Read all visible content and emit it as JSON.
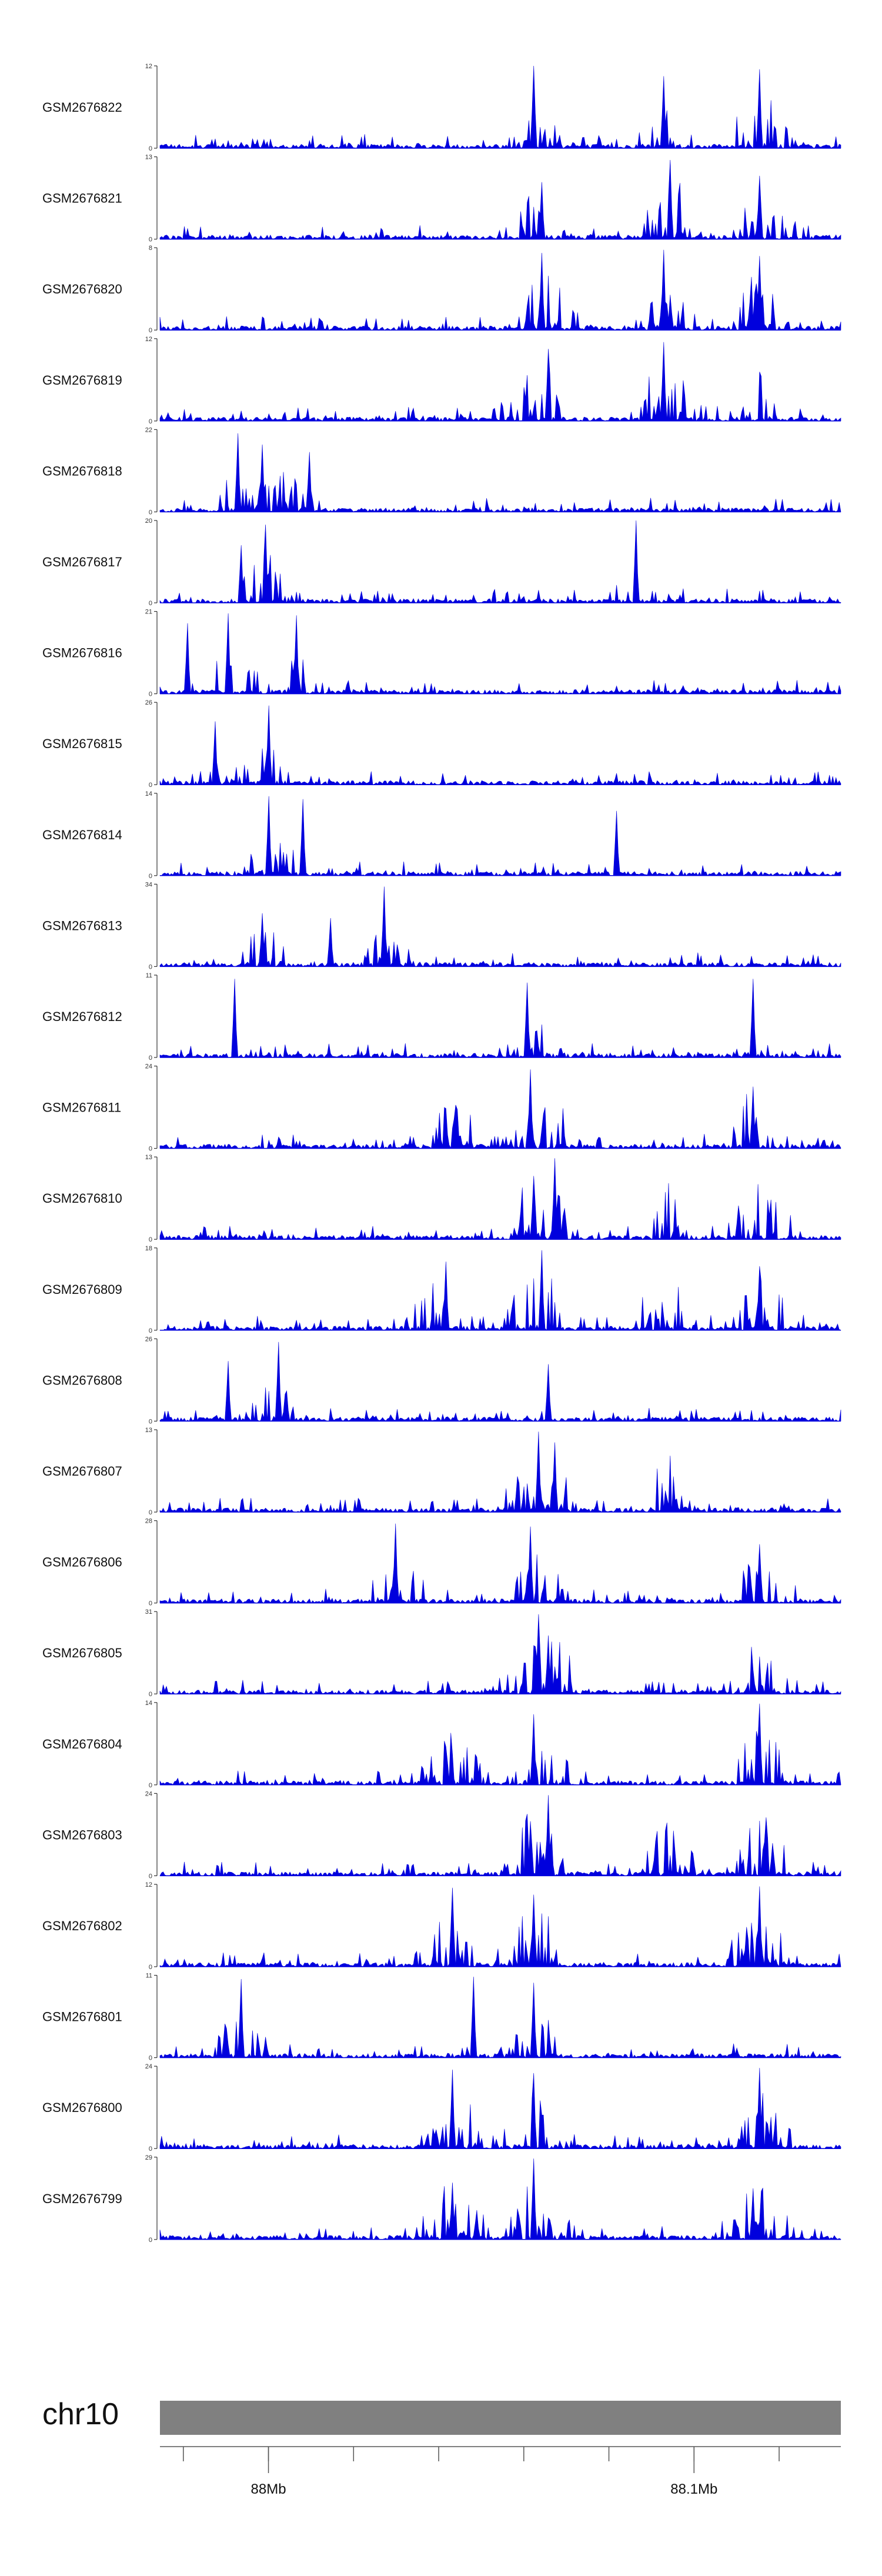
{
  "chart_data": {
    "type": "area",
    "title": "",
    "chromosome": "chr10",
    "x_ticks": [
      {
        "value": 88.0,
        "label": "88Mb"
      },
      {
        "value": 88.1,
        "label": "88.1Mb"
      }
    ],
    "xlim": [
      87.9745,
      88.1345
    ],
    "colors": {
      "signal": "#0000dd",
      "ideogram": "#808080",
      "axis": "#444444"
    },
    "tracks": [
      {
        "name": "GSM2676822",
        "ymax": 12,
        "seed": 822,
        "hotspots": [
          [
            0.55,
            4.0
          ],
          [
            0.74,
            2.5
          ],
          [
            0.88,
            3.5
          ]
        ],
        "peaks": [
          [
            0.55,
            12
          ],
          [
            0.74,
            10.5
          ],
          [
            0.88,
            11.5
          ]
        ]
      },
      {
        "name": "GSM2676821",
        "ymax": 13,
        "seed": 821,
        "hotspots": [
          [
            0.56,
            3.0
          ],
          [
            0.75,
            4.0
          ],
          [
            0.88,
            3.0
          ]
        ],
        "peaks": [
          [
            0.75,
            12.5
          ],
          [
            0.88,
            10
          ],
          [
            0.56,
            9
          ]
        ]
      },
      {
        "name": "GSM2676820",
        "ymax": 8,
        "seed": 820,
        "hotspots": [
          [
            0.57,
            4.5
          ],
          [
            0.74,
            3.0
          ],
          [
            0.88,
            3.5
          ]
        ],
        "peaks": [
          [
            0.56,
            7.5
          ],
          [
            0.74,
            7.8
          ],
          [
            0.88,
            7.2
          ]
        ]
      },
      {
        "name": "GSM2676819",
        "ymax": 12,
        "seed": 819,
        "hotspots": [
          [
            0.55,
            3.5
          ],
          [
            0.74,
            4.0
          ],
          [
            0.88,
            2.5
          ]
        ],
        "peaks": [
          [
            0.74,
            11.5
          ],
          [
            0.57,
            10.5
          ]
        ]
      },
      {
        "name": "GSM2676818",
        "ymax": 22,
        "seed": 818,
        "hotspots": [
          [
            0.18,
            2.5
          ],
          [
            0.12,
            2.0
          ]
        ],
        "peaks": [
          [
            0.115,
            21
          ],
          [
            0.15,
            18
          ],
          [
            0.22,
            16
          ]
        ]
      },
      {
        "name": "GSM2676817",
        "ymax": 20,
        "seed": 817,
        "hotspots": [
          [
            0.16,
            2.5
          ],
          [
            0.7,
            1.0
          ]
        ],
        "peaks": [
          [
            0.7,
            20
          ],
          [
            0.155,
            19
          ],
          [
            0.12,
            14
          ]
        ]
      },
      {
        "name": "GSM2676816",
        "ymax": 21,
        "seed": 816,
        "hotspots": [
          [
            0.1,
            2.0
          ],
          [
            0.2,
            2.0
          ]
        ],
        "peaks": [
          [
            0.1,
            20.5
          ],
          [
            0.2,
            20
          ],
          [
            0.04,
            18
          ]
        ]
      },
      {
        "name": "GSM2676815",
        "ymax": 26,
        "seed": 815,
        "hotspots": [
          [
            0.16,
            2.0
          ]
        ],
        "peaks": [
          [
            0.16,
            25
          ],
          [
            0.08,
            20
          ]
        ]
      },
      {
        "name": "GSM2676814",
        "ymax": 14,
        "seed": 814,
        "hotspots": [
          [
            0.17,
            2.0
          ]
        ],
        "peaks": [
          [
            0.16,
            13.5
          ],
          [
            0.21,
            13
          ],
          [
            0.67,
            11
          ]
        ]
      },
      {
        "name": "GSM2676813",
        "ymax": 34,
        "seed": 813,
        "hotspots": [
          [
            0.15,
            2.0
          ],
          [
            0.33,
            2.0
          ]
        ],
        "peaks": [
          [
            0.33,
            33
          ],
          [
            0.15,
            22
          ],
          [
            0.25,
            20
          ]
        ]
      },
      {
        "name": "GSM2676812",
        "ymax": 11,
        "seed": 812,
        "hotspots": [
          [
            0.55,
            2.0
          ]
        ],
        "peaks": [
          [
            0.11,
            10.5
          ],
          [
            0.87,
            10.5
          ],
          [
            0.54,
            10
          ]
        ]
      },
      {
        "name": "GSM2676811",
        "ymax": 24,
        "seed": 811,
        "hotspots": [
          [
            0.56,
            6.0
          ],
          [
            0.43,
            3.0
          ],
          [
            0.88,
            4.0
          ]
        ],
        "peaks": [
          [
            0.545,
            23
          ],
          [
            0.87,
            18
          ]
        ]
      },
      {
        "name": "GSM2676810",
        "ymax": 13,
        "seed": 810,
        "hotspots": [
          [
            0.56,
            6.0
          ],
          [
            0.75,
            3.0
          ],
          [
            0.88,
            4.0
          ]
        ],
        "peaks": [
          [
            0.58,
            12.8
          ],
          [
            0.55,
            10
          ]
        ]
      },
      {
        "name": "GSM2676809",
        "ymax": 18,
        "seed": 809,
        "hotspots": [
          [
            0.55,
            5.0
          ],
          [
            0.41,
            3.0
          ],
          [
            0.74,
            3.0
          ],
          [
            0.88,
            4.0
          ]
        ],
        "peaks": [
          [
            0.56,
            17.5
          ],
          [
            0.42,
            15
          ],
          [
            0.88,
            14
          ]
        ]
      },
      {
        "name": "GSM2676808",
        "ymax": 26,
        "seed": 808,
        "hotspots": [
          [
            0.17,
            2.0
          ]
        ],
        "peaks": [
          [
            0.175,
            25
          ],
          [
            0.1,
            19
          ],
          [
            0.57,
            18
          ]
        ]
      },
      {
        "name": "GSM2676807",
        "ymax": 13,
        "seed": 807,
        "hotspots": [
          [
            0.56,
            6.0
          ],
          [
            0.75,
            3.0
          ]
        ],
        "peaks": [
          [
            0.555,
            12.7
          ],
          [
            0.58,
            11
          ]
        ]
      },
      {
        "name": "GSM2676806",
        "ymax": 28,
        "seed": 806,
        "hotspots": [
          [
            0.55,
            3.0
          ],
          [
            0.35,
            2.0
          ],
          [
            0.88,
            3.0
          ]
        ],
        "peaks": [
          [
            0.345,
            27
          ],
          [
            0.545,
            26
          ],
          [
            0.88,
            20
          ]
        ]
      },
      {
        "name": "GSM2676805",
        "ymax": 31,
        "seed": 805,
        "hotspots": [
          [
            0.56,
            8.0
          ],
          [
            0.88,
            3.0
          ]
        ],
        "peaks": [
          [
            0.555,
            30
          ],
          [
            0.57,
            22
          ]
        ]
      },
      {
        "name": "GSM2676804",
        "ymax": 14,
        "seed": 804,
        "hotspots": [
          [
            0.55,
            5.0
          ],
          [
            0.88,
            4.0
          ],
          [
            0.43,
            3.0
          ]
        ],
        "peaks": [
          [
            0.88,
            13.8
          ],
          [
            0.55,
            12
          ]
        ]
      },
      {
        "name": "GSM2676803",
        "ymax": 24,
        "seed": 803,
        "hotspots": [
          [
            0.56,
            5.0
          ],
          [
            0.75,
            3.0
          ],
          [
            0.88,
            4.0
          ]
        ],
        "peaks": [
          [
            0.57,
            23.5
          ],
          [
            0.54,
            18
          ],
          [
            0.89,
            17
          ]
        ]
      },
      {
        "name": "GSM2676802",
        "ymax": 12,
        "seed": 802,
        "hotspots": [
          [
            0.43,
            3.0
          ],
          [
            0.55,
            4.0
          ],
          [
            0.88,
            4.0
          ]
        ],
        "peaks": [
          [
            0.43,
            11.5
          ],
          [
            0.88,
            11.7
          ],
          [
            0.55,
            10.5
          ]
        ]
      },
      {
        "name": "GSM2676801",
        "ymax": 11,
        "seed": 801,
        "hotspots": [
          [
            0.12,
            2.5
          ],
          [
            0.55,
            3.0
          ]
        ],
        "peaks": [
          [
            0.12,
            10.5
          ],
          [
            0.46,
            10.8
          ],
          [
            0.55,
            10
          ]
        ]
      },
      {
        "name": "GSM2676800",
        "ymax": 24,
        "seed": 800,
        "hotspots": [
          [
            0.43,
            4.0
          ],
          [
            0.55,
            4.0
          ],
          [
            0.88,
            4.0
          ]
        ],
        "peaks": [
          [
            0.43,
            23
          ],
          [
            0.55,
            22
          ],
          [
            0.88,
            23.5
          ]
        ]
      },
      {
        "name": "GSM2676799",
        "ymax": 29,
        "seed": 799,
        "hotspots": [
          [
            0.55,
            6.0
          ],
          [
            0.43,
            4.0
          ],
          [
            0.88,
            4.0
          ]
        ],
        "peaks": [
          [
            0.55,
            28.5
          ],
          [
            0.43,
            20
          ],
          [
            0.87,
            18
          ]
        ]
      }
    ]
  }
}
